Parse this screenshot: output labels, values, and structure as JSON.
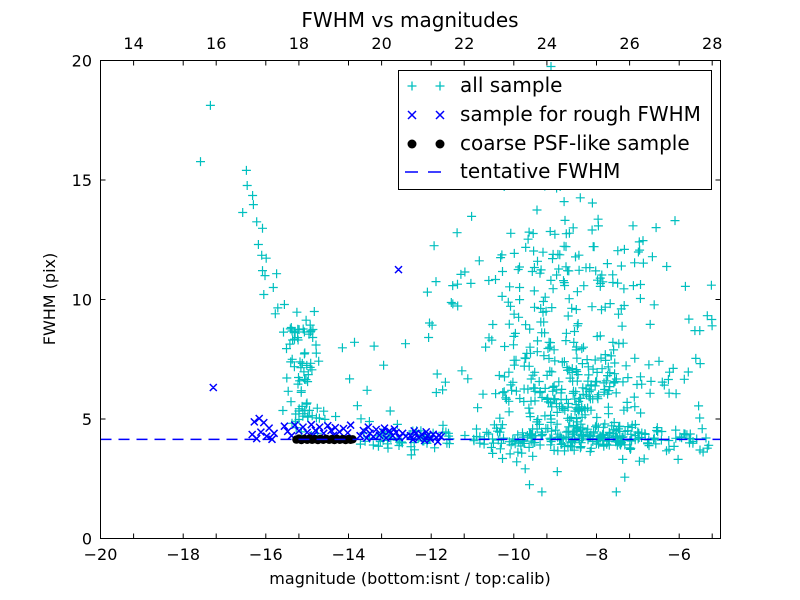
{
  "figure": {
    "title": "FWHM vs magnitudes",
    "xlabel": "magnitude (bottom:isnt / top:calib)",
    "ylabel": "FWHM (pix)",
    "background": "#ffffff",
    "axis_color": "#000000"
  },
  "legend": {
    "items": [
      {
        "label": "all sample",
        "marker": "plus",
        "color": "#00bfbf"
      },
      {
        "label": "sample for rough FWHM",
        "marker": "cross",
        "color": "#0000ff"
      },
      {
        "label": "coarse PSF-like sample",
        "marker": "dot",
        "color": "#000000"
      },
      {
        "label": "tentative FWHM",
        "marker": "dashed-line",
        "color": "#0000ff"
      }
    ]
  },
  "chart_data": {
    "type": "scatter",
    "title": "FWHM vs magnitudes",
    "xlabel": "magnitude (bottom:isnt / top:calib)",
    "ylabel": "FWHM (pix)",
    "x_axis_bottom": {
      "name": "isnt magnitude",
      "range": [
        -20,
        -5
      ],
      "ticks": [
        {
          "v": -20,
          "label": "−20"
        },
        {
          "v": -18,
          "label": "−18"
        },
        {
          "v": -16,
          "label": "−16"
        },
        {
          "v": -14,
          "label": "−14"
        },
        {
          "v": -12,
          "label": "−12"
        },
        {
          "v": -10,
          "label": "−10"
        },
        {
          "v": -8,
          "label": "−8"
        },
        {
          "v": -6,
          "label": "−6"
        }
      ]
    },
    "x_axis_top": {
      "name": "calib magnitude",
      "range": [
        13.2,
        28.2
      ],
      "ticks": [
        {
          "v": 14,
          "label": "14"
        },
        {
          "v": 16,
          "label": "16"
        },
        {
          "v": 18,
          "label": "18"
        },
        {
          "v": 20,
          "label": "20"
        },
        {
          "v": 22,
          "label": "22"
        },
        {
          "v": 24,
          "label": "24"
        },
        {
          "v": 26,
          "label": "26"
        },
        {
          "v": 28,
          "label": "28"
        }
      ]
    },
    "y_axis": {
      "range": [
        0,
        20
      ],
      "ticks": [
        {
          "v": 0,
          "label": "0"
        },
        {
          "v": 5,
          "label": "5"
        },
        {
          "v": 10,
          "label": "10"
        },
        {
          "v": 15,
          "label": "15"
        },
        {
          "v": 20,
          "label": "20"
        }
      ]
    },
    "grid": false,
    "legend_position": "upper right",
    "tentative_fwhm": 4.15,
    "series": [
      {
        "name": "all sample",
        "marker": "plus",
        "color": "#00bfbf",
        "points": [
          [
            -17.34,
            18.12
          ],
          [
            -17.58,
            15.77
          ],
          [
            -16.47,
            15.4
          ],
          [
            -16.45,
            14.77
          ],
          [
            -16.32,
            14.35
          ],
          [
            -16.3,
            13.97
          ],
          [
            -16.56,
            13.64
          ],
          [
            -16.22,
            13.25
          ],
          [
            -16.08,
            12.98
          ],
          [
            -16.18,
            12.3
          ],
          [
            -16.1,
            11.85
          ],
          [
            -15.99,
            11.73
          ],
          [
            -16.08,
            11.21
          ],
          [
            -16.02,
            11.0
          ],
          [
            -15.74,
            11.08
          ],
          [
            -15.82,
            10.5
          ],
          [
            -16.05,
            10.21
          ],
          [
            -15.71,
            9.65
          ],
          [
            -15.77,
            9.4
          ],
          [
            -15.55,
            9.79
          ],
          [
            -9.1,
            19.75
          ],
          [
            -11.93,
            12.25
          ],
          [
            -12.62,
            8.15
          ],
          [
            -13.38,
            8.05
          ],
          [
            -13.15,
            7.25
          ],
          [
            -9.4,
            15.85
          ],
          [
            -8.9,
            16.4
          ],
          [
            -10.3,
            16.1
          ],
          [
            -5.22,
            10.6
          ],
          [
            -5.5,
            8.7
          ],
          [
            -5.85,
            10.55
          ],
          [
            -6.1,
            13.3
          ],
          [
            -9.62,
            2.25
          ],
          [
            -9.32,
            1.95
          ],
          [
            -7.52,
            1.95
          ],
          [
            -12.48,
            3.5
          ],
          [
            -5.42,
            3.62
          ],
          [
            -5.32,
            3.78
          ],
          [
            -5.75,
            4.0
          ],
          [
            -13.55,
            6.2
          ]
        ],
        "clusters": [
          {
            "id": "arm-clump",
            "dist": "gauss",
            "n": 55,
            "cx": -15.12,
            "cy": 7.7,
            "sx": 0.22,
            "sy": 1.05,
            "xlim": [
              -15.65,
              -14.55
            ],
            "ylim": [
              5.2,
              9.7
            ],
            "seed": 101
          },
          {
            "id": "arm-tail",
            "dist": "gauss",
            "n": 25,
            "cx": -14.95,
            "cy": 5.0,
            "sx": 0.3,
            "sy": 0.45,
            "xlim": [
              -15.5,
              -14.25
            ],
            "ylim": [
              4.3,
              6.1
            ],
            "seed": 102
          },
          {
            "id": "gap-sparse",
            "dist": "uniform",
            "n": 8,
            "xlim": [
              -14.4,
              -12.5
            ],
            "ylim": [
              4.8,
              8.4
            ],
            "seed": 103
          },
          {
            "id": "cloud-upper",
            "dist": "gauss",
            "n": 150,
            "cx": -8.9,
            "cy": 10.4,
            "sx": 1.15,
            "sy": 1.85,
            "xlim": [
              -11.9,
              -6.2
            ],
            "ylim": [
              8.0,
              15.3
            ],
            "seed": 104
          },
          {
            "id": "cloud-top",
            "dist": "uniform",
            "n": 10,
            "xlim": [
              -10.6,
              -7.8
            ],
            "ylim": [
              14.2,
              15.9
            ],
            "seed": 105
          },
          {
            "id": "cloud-core",
            "dist": "gauss",
            "n": 215,
            "cx": -8.5,
            "cy": 6.3,
            "sx": 1.0,
            "sy": 1.1,
            "xlim": [
              -11.3,
              -6.1
            ],
            "ylim": [
              4.7,
              8.4
            ],
            "seed": 106
          },
          {
            "id": "line-band",
            "dist": "gauss",
            "n": 245,
            "cx": -8.3,
            "cy": 4.25,
            "sx": 1.6,
            "sy": 0.28,
            "xlim": [
              -11.9,
              -5.15
            ],
            "ylim": [
              3.55,
              4.95
            ],
            "seed": 107
          },
          {
            "id": "line-band-left",
            "dist": "gauss",
            "n": 48,
            "cx": -12.6,
            "cy": 4.2,
            "sx": 0.8,
            "sy": 0.25,
            "xlim": [
              -13.9,
              -11.5
            ],
            "ylim": [
              3.7,
              4.9
            ],
            "seed": 108
          },
          {
            "id": "left-cloud",
            "dist": "uniform",
            "n": 15,
            "xlim": [
              -12.35,
              -11.2
            ],
            "ylim": [
              5.5,
              12.3
            ],
            "seed": 109
          },
          {
            "id": "below-line",
            "dist": "uniform",
            "n": 11,
            "xlim": [
              -10.9,
              -6.0
            ],
            "ylim": [
              2.5,
              3.6
            ],
            "seed": 110
          },
          {
            "id": "right-sparse",
            "dist": "uniform",
            "n": 18,
            "xlim": [
              -6.35,
              -5.2
            ],
            "ylim": [
              3.7,
              10.5
            ],
            "seed": 111
          }
        ]
      },
      {
        "name": "sample for rough FWHM",
        "marker": "cross",
        "color": "#0000ff",
        "points": [
          [
            -17.27,
            6.32
          ],
          [
            -12.79,
            11.25
          ],
          [
            -16.33,
            4.35
          ],
          [
            -16.28,
            4.88
          ],
          [
            -16.22,
            4.18
          ],
          [
            -16.12,
            4.45
          ],
          [
            -16.05,
            4.85
          ],
          [
            -15.98,
            4.28
          ],
          [
            -15.92,
            4.62
          ],
          [
            -15.85,
            4.15
          ],
          [
            -15.8,
            4.4
          ],
          [
            -16.16,
            5.02
          ],
          [
            -15.55,
            4.7
          ],
          [
            -15.47,
            4.48
          ],
          [
            -15.38,
            4.3
          ],
          [
            -15.3,
            4.74
          ],
          [
            -15.2,
            4.5
          ],
          [
            -15.1,
            4.66
          ],
          [
            -15.0,
            4.44
          ],
          [
            -14.9,
            4.76
          ],
          [
            -14.8,
            4.52
          ],
          [
            -14.7,
            4.66
          ],
          [
            -14.6,
            4.4
          ],
          [
            -14.5,
            4.72
          ],
          [
            -14.42,
            4.52
          ],
          [
            -14.32,
            4.64
          ],
          [
            -14.22,
            4.46
          ],
          [
            -14.12,
            4.6
          ],
          [
            -14.02,
            4.42
          ],
          [
            -13.95,
            4.74
          ],
          [
            -14.86,
            4.3
          ],
          [
            -14.36,
            4.32
          ],
          [
            -13.72,
            4.3
          ],
          [
            -13.64,
            4.52
          ],
          [
            -13.56,
            4.2
          ],
          [
            -13.48,
            4.4
          ],
          [
            -13.4,
            4.26
          ],
          [
            -13.33,
            4.56
          ],
          [
            -13.25,
            4.32
          ],
          [
            -13.17,
            4.46
          ],
          [
            -13.09,
            4.2
          ],
          [
            -13.01,
            4.5
          ],
          [
            -12.93,
            4.3
          ],
          [
            -12.85,
            4.44
          ],
          [
            -12.77,
            4.22
          ],
          [
            -12.69,
            4.4
          ],
          [
            -12.61,
            4.28
          ],
          [
            -13.52,
            4.66
          ],
          [
            -13.13,
            4.62
          ],
          [
            -12.89,
            4.58
          ],
          [
            -12.5,
            4.3
          ],
          [
            -12.44,
            4.14
          ],
          [
            -12.37,
            4.4
          ],
          [
            -12.3,
            4.2
          ],
          [
            -12.23,
            4.35
          ],
          [
            -12.16,
            4.1
          ],
          [
            -12.09,
            4.3
          ],
          [
            -12.02,
            4.16
          ],
          [
            -11.95,
            4.36
          ],
          [
            -11.88,
            4.22
          ],
          [
            -11.81,
            4.32
          ],
          [
            -12.41,
            4.5
          ],
          [
            -12.12,
            4.46
          ],
          [
            -11.76,
            4.25
          ],
          [
            -11.84,
            4.05
          ]
        ],
        "clusters": []
      },
      {
        "name": "coarse PSF-like sample",
        "marker": "dot",
        "color": "#000000",
        "points": [
          [
            -15.26,
            4.14
          ],
          [
            -15.2,
            4.18
          ],
          [
            -15.14,
            4.12
          ],
          [
            -15.07,
            4.17
          ],
          [
            -15.0,
            4.13
          ],
          [
            -14.94,
            4.18
          ],
          [
            -14.88,
            4.13
          ],
          [
            -14.81,
            4.16
          ],
          [
            -14.74,
            4.12
          ],
          [
            -14.68,
            4.17
          ],
          [
            -14.61,
            4.13
          ],
          [
            -14.54,
            4.17
          ],
          [
            -14.47,
            4.13
          ],
          [
            -14.4,
            4.16
          ],
          [
            -14.34,
            4.12
          ],
          [
            -14.28,
            4.17
          ],
          [
            -14.21,
            4.13
          ],
          [
            -14.14,
            4.16
          ],
          [
            -14.07,
            4.12
          ],
          [
            -14.0,
            4.16
          ],
          [
            -13.95,
            4.13
          ],
          [
            -13.9,
            4.15
          ]
        ],
        "clusters": []
      },
      {
        "name": "tentative FWHM",
        "marker": "dashed-line",
        "color": "#0000ff",
        "hline": 4.15,
        "dash": [
          11,
          7
        ]
      }
    ]
  }
}
